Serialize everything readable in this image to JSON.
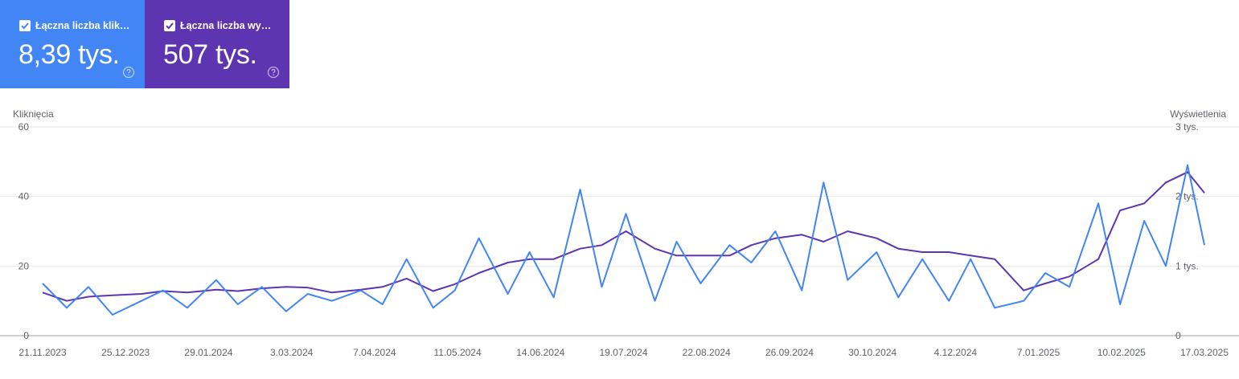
{
  "cards": [
    {
      "label": "Łączna liczba klik…",
      "value": "8,39 tys.",
      "color": "#4285f4"
    },
    {
      "label": "Łączna liczba wy…",
      "value": "507 tys.",
      "color": "#5e35b1"
    }
  ],
  "chart_data": {
    "type": "line",
    "ylabel": "Kliknięcia",
    "y2label": "Wyświetlenia",
    "ylim": [
      0,
      60
    ],
    "y2lim": [
      0,
      3000
    ],
    "yticks": [
      {
        "value": 0,
        "label": "0"
      },
      {
        "value": 20,
        "label": "20"
      },
      {
        "value": 40,
        "label": "40"
      },
      {
        "value": 60,
        "label": "60"
      }
    ],
    "y2ticks": [
      {
        "value": 0,
        "label": "0"
      },
      {
        "value": 1000,
        "label": "1 tys."
      },
      {
        "value": 2000,
        "label": "2 tys."
      },
      {
        "value": 3000,
        "label": "3 tys."
      }
    ],
    "xlim": [
      "2023-11-21",
      "2025-03-17"
    ],
    "xticks": [
      "21.11.2023",
      "25.12.2023",
      "29.01.2024",
      "3.03.2024",
      "7.04.2024",
      "11.05.2024",
      "14.06.2024",
      "19.07.2024",
      "22.08.2024",
      "26.09.2024",
      "30.10.2024",
      "4.12.2024",
      "7.01.2025",
      "10.02.2025",
      "17.03.2025"
    ],
    "grid": true,
    "series": [
      {
        "name": "Łączna liczba kliknięć",
        "axis": "left",
        "color": "#4285f4",
        "x": [
          "2023-11-21",
          "2023-12-01",
          "2023-12-10",
          "2023-12-20",
          "2024-01-01",
          "2024-01-10",
          "2024-01-20",
          "2024-02-01",
          "2024-02-10",
          "2024-02-20",
          "2024-03-01",
          "2024-03-10",
          "2024-03-20",
          "2024-04-01",
          "2024-04-10",
          "2024-04-20",
          "2024-05-01",
          "2024-05-10",
          "2024-05-20",
          "2024-06-01",
          "2024-06-10",
          "2024-06-20",
          "2024-07-01",
          "2024-07-10",
          "2024-07-20",
          "2024-08-01",
          "2024-08-10",
          "2024-08-20",
          "2024-09-01",
          "2024-09-10",
          "2024-09-20",
          "2024-10-01",
          "2024-10-10",
          "2024-10-20",
          "2024-11-01",
          "2024-11-10",
          "2024-11-20",
          "2024-12-01",
          "2024-12-10",
          "2024-12-20",
          "2025-01-01",
          "2025-01-10",
          "2025-01-20",
          "2025-02-01",
          "2025-02-10",
          "2025-02-20",
          "2025-03-01",
          "2025-03-10",
          "2025-03-17"
        ],
        "values": [
          15,
          8,
          14,
          6,
          10,
          13,
          8,
          16,
          9,
          14,
          7,
          12,
          10,
          13,
          9,
          22,
          8,
          13,
          28,
          12,
          24,
          11,
          42,
          14,
          35,
          10,
          27,
          15,
          26,
          21,
          30,
          13,
          44,
          16,
          24,
          11,
          22,
          10,
          22,
          8,
          10,
          18,
          14,
          38,
          9,
          33,
          20,
          49,
          26
        ]
      },
      {
        "name": "Łączna liczba wyświetleń",
        "axis": "right",
        "color": "#5e35b1",
        "x": [
          "2023-11-21",
          "2023-12-01",
          "2023-12-10",
          "2023-12-20",
          "2024-01-01",
          "2024-01-10",
          "2024-01-20",
          "2024-02-01",
          "2024-02-10",
          "2024-02-20",
          "2024-03-01",
          "2024-03-10",
          "2024-03-20",
          "2024-04-01",
          "2024-04-10",
          "2024-04-20",
          "2024-05-01",
          "2024-05-10",
          "2024-05-20",
          "2024-06-01",
          "2024-06-10",
          "2024-06-20",
          "2024-07-01",
          "2024-07-10",
          "2024-07-20",
          "2024-08-01",
          "2024-08-10",
          "2024-08-20",
          "2024-09-01",
          "2024-09-10",
          "2024-09-20",
          "2024-10-01",
          "2024-10-10",
          "2024-10-20",
          "2024-11-01",
          "2024-11-10",
          "2024-11-20",
          "2024-12-01",
          "2024-12-10",
          "2024-12-20",
          "2025-01-01",
          "2025-01-10",
          "2025-01-20",
          "2025-02-01",
          "2025-02-10",
          "2025-02-20",
          "2025-03-01",
          "2025-03-10",
          "2025-03-17"
        ],
        "values": [
          620,
          500,
          560,
          580,
          600,
          640,
          620,
          660,
          640,
          680,
          700,
          690,
          620,
          660,
          700,
          820,
          640,
          740,
          900,
          1050,
          1100,
          1100,
          1250,
          1300,
          1500,
          1250,
          1150,
          1150,
          1150,
          1300,
          1400,
          1450,
          1350,
          1500,
          1400,
          1250,
          1200,
          1200,
          1150,
          1100,
          650,
          750,
          850,
          1100,
          1800,
          1900,
          2200,
          2350,
          2050
        ]
      }
    ]
  }
}
